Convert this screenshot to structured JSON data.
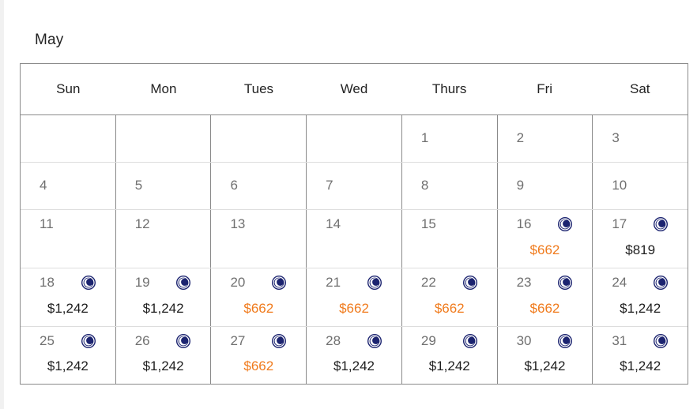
{
  "calendar": {
    "month": "May",
    "weekdays": [
      "Sun",
      "Mon",
      "Tues",
      "Wed",
      "Thurs",
      "Fri",
      "Sat"
    ],
    "colors": {
      "low_price": "#f07b1d",
      "normal_price": "#1e1e1e",
      "moon_icon": "#1c2470"
    },
    "weeks": [
      [
        {
          "day": "",
          "price": "",
          "moon": false,
          "low": false
        },
        {
          "day": "",
          "price": "",
          "moon": false,
          "low": false
        },
        {
          "day": "",
          "price": "",
          "moon": false,
          "low": false
        },
        {
          "day": "",
          "price": "",
          "moon": false,
          "low": false
        },
        {
          "day": "1",
          "price": "",
          "moon": false,
          "low": false
        },
        {
          "day": "2",
          "price": "",
          "moon": false,
          "low": false
        },
        {
          "day": "3",
          "price": "",
          "moon": false,
          "low": false
        }
      ],
      [
        {
          "day": "4",
          "price": "",
          "moon": false,
          "low": false
        },
        {
          "day": "5",
          "price": "",
          "moon": false,
          "low": false
        },
        {
          "day": "6",
          "price": "",
          "moon": false,
          "low": false
        },
        {
          "day": "7",
          "price": "",
          "moon": false,
          "low": false
        },
        {
          "day": "8",
          "price": "",
          "moon": false,
          "low": false
        },
        {
          "day": "9",
          "price": "",
          "moon": false,
          "low": false
        },
        {
          "day": "10",
          "price": "",
          "moon": false,
          "low": false
        }
      ],
      [
        {
          "day": "11",
          "price": "",
          "moon": false,
          "low": false
        },
        {
          "day": "12",
          "price": "",
          "moon": false,
          "low": false
        },
        {
          "day": "13",
          "price": "",
          "moon": false,
          "low": false
        },
        {
          "day": "14",
          "price": "",
          "moon": false,
          "low": false
        },
        {
          "day": "15",
          "price": "",
          "moon": false,
          "low": false
        },
        {
          "day": "16",
          "price": "$662",
          "moon": true,
          "low": true
        },
        {
          "day": "17",
          "price": "$819",
          "moon": true,
          "low": false
        }
      ],
      [
        {
          "day": "18",
          "price": "$1,242",
          "moon": true,
          "low": false
        },
        {
          "day": "19",
          "price": "$1,242",
          "moon": true,
          "low": false
        },
        {
          "day": "20",
          "price": "$662",
          "moon": true,
          "low": true
        },
        {
          "day": "21",
          "price": "$662",
          "moon": true,
          "low": true
        },
        {
          "day": "22",
          "price": "$662",
          "moon": true,
          "low": true
        },
        {
          "day": "23",
          "price": "$662",
          "moon": true,
          "low": true
        },
        {
          "day": "24",
          "price": "$1,242",
          "moon": true,
          "low": false
        }
      ],
      [
        {
          "day": "25",
          "price": "$1,242",
          "moon": true,
          "low": false
        },
        {
          "day": "26",
          "price": "$1,242",
          "moon": true,
          "low": false
        },
        {
          "day": "27",
          "price": "$662",
          "moon": true,
          "low": true
        },
        {
          "day": "28",
          "price": "$1,242",
          "moon": true,
          "low": false
        },
        {
          "day": "29",
          "price": "$1,242",
          "moon": true,
          "low": false
        },
        {
          "day": "30",
          "price": "$1,242",
          "moon": true,
          "low": false
        },
        {
          "day": "31",
          "price": "$1,242",
          "moon": true,
          "low": false
        }
      ]
    ]
  }
}
